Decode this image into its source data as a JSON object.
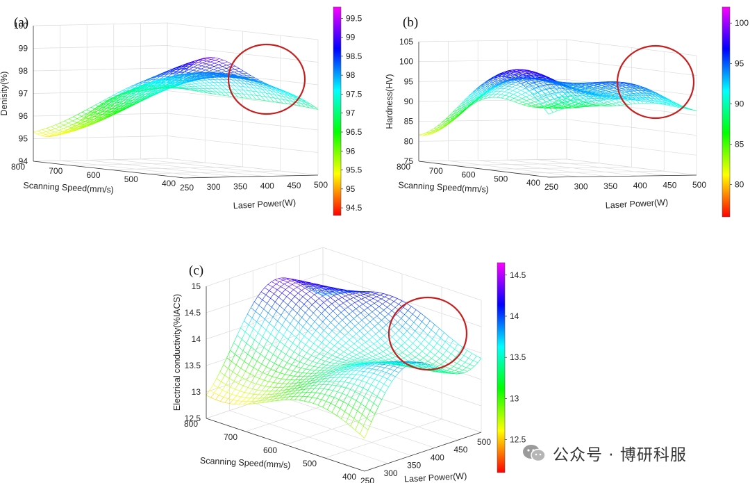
{
  "chart_data": [
    {
      "panel": "(a)",
      "type": "surface",
      "xlabel": "Laser Power(W)",
      "ylabel": "Scanning Speed(mm/s)",
      "zlabel": "Denisity(%)",
      "x_ticks": [
        "250",
        "300",
        "350",
        "400",
        "450",
        "500"
      ],
      "y_ticks": [
        "400",
        "500",
        "600",
        "700",
        "800"
      ],
      "z_ticks": [
        "94",
        "95",
        "96",
        "97",
        "98",
        "99",
        "100"
      ],
      "xlim": [
        250,
        500
      ],
      "ylim": [
        400,
        800
      ],
      "zlim": [
        94,
        100
      ],
      "colorbar_ticks": [
        "94.5",
        "95",
        "95.5",
        "96",
        "96.5",
        "97",
        "97.5",
        "98",
        "98.5",
        "99",
        "99.5"
      ],
      "colorbar_range": [
        94.3,
        99.8
      ],
      "highlight": "red circle around high laser power region",
      "surface_samples": [
        {
          "laser_power": 250,
          "scanning_speed": 800,
          "value": 94.5
        },
        {
          "laser_power": 300,
          "scanning_speed": 600,
          "value": 99.0
        },
        {
          "laser_power": 350,
          "scanning_speed": 400,
          "value": 94.3
        },
        {
          "laser_power": 450,
          "scanning_speed": 500,
          "value": 99.5
        }
      ]
    },
    {
      "panel": "(b)",
      "type": "surface",
      "xlabel": "Laser Power(W)",
      "ylabel": "Scanning Speed(mm/s)",
      "zlabel": "Hardness(HV)",
      "x_ticks": [
        "250",
        "300",
        "350",
        "400",
        "450",
        "500"
      ],
      "y_ticks": [
        "400",
        "500",
        "600",
        "700",
        "800"
      ],
      "z_ticks": [
        "75",
        "80",
        "85",
        "90",
        "95",
        "100",
        "105"
      ],
      "xlim": [
        250,
        500
      ],
      "ylim": [
        400,
        800
      ],
      "zlim": [
        75,
        105
      ],
      "colorbar_ticks": [
        "80",
        "85",
        "90",
        "95",
        "100"
      ],
      "colorbar_range": [
        76,
        102
      ],
      "highlight": "red circle around high laser power region",
      "surface_samples": [
        {
          "laser_power": 250,
          "scanning_speed": 800,
          "value": 77
        },
        {
          "laser_power": 350,
          "scanning_speed": 600,
          "value": 100
        },
        {
          "laser_power": 400,
          "scanning_speed": 400,
          "value": 79
        },
        {
          "laser_power": 470,
          "scanning_speed": 500,
          "value": 98
        }
      ]
    },
    {
      "panel": "(c)",
      "type": "surface",
      "xlabel": "Laser Power(W)",
      "ylabel": "Scanning Speed(mm/s)",
      "zlabel": "Electrical conductivity(%IACS)",
      "x_ticks": [
        "250",
        "300",
        "350",
        "400",
        "450",
        "500"
      ],
      "y_ticks": [
        "400",
        "500",
        "600",
        "700",
        "800"
      ],
      "z_ticks": [
        "12.5",
        "13",
        "13.5",
        "14",
        "14.5",
        "15"
      ],
      "xlim": [
        250,
        500
      ],
      "ylim": [
        400,
        800
      ],
      "zlim": [
        12,
        15
      ],
      "colorbar_ticks": [
        "12.5",
        "13",
        "13.5",
        "14",
        "14.5"
      ],
      "colorbar_range": [
        12.1,
        14.65
      ],
      "highlight": "red circle around high laser power region",
      "surface_samples": [
        {
          "laser_power": 250,
          "scanning_speed": 800,
          "value": 12.1
        },
        {
          "laser_power": 350,
          "scanning_speed": 700,
          "value": 14.7
        },
        {
          "laser_power": 300,
          "scanning_speed": 400,
          "value": 12.5
        },
        {
          "laser_power": 470,
          "scanning_speed": 500,
          "value": 14.5
        }
      ]
    }
  ],
  "colors": {
    "highlight": "#c81e1e",
    "grid": "#dcdcdc",
    "axis": "#333333"
  },
  "watermark": {
    "icon": "wechat-icon",
    "text": "公众号 · 博研科服"
  }
}
